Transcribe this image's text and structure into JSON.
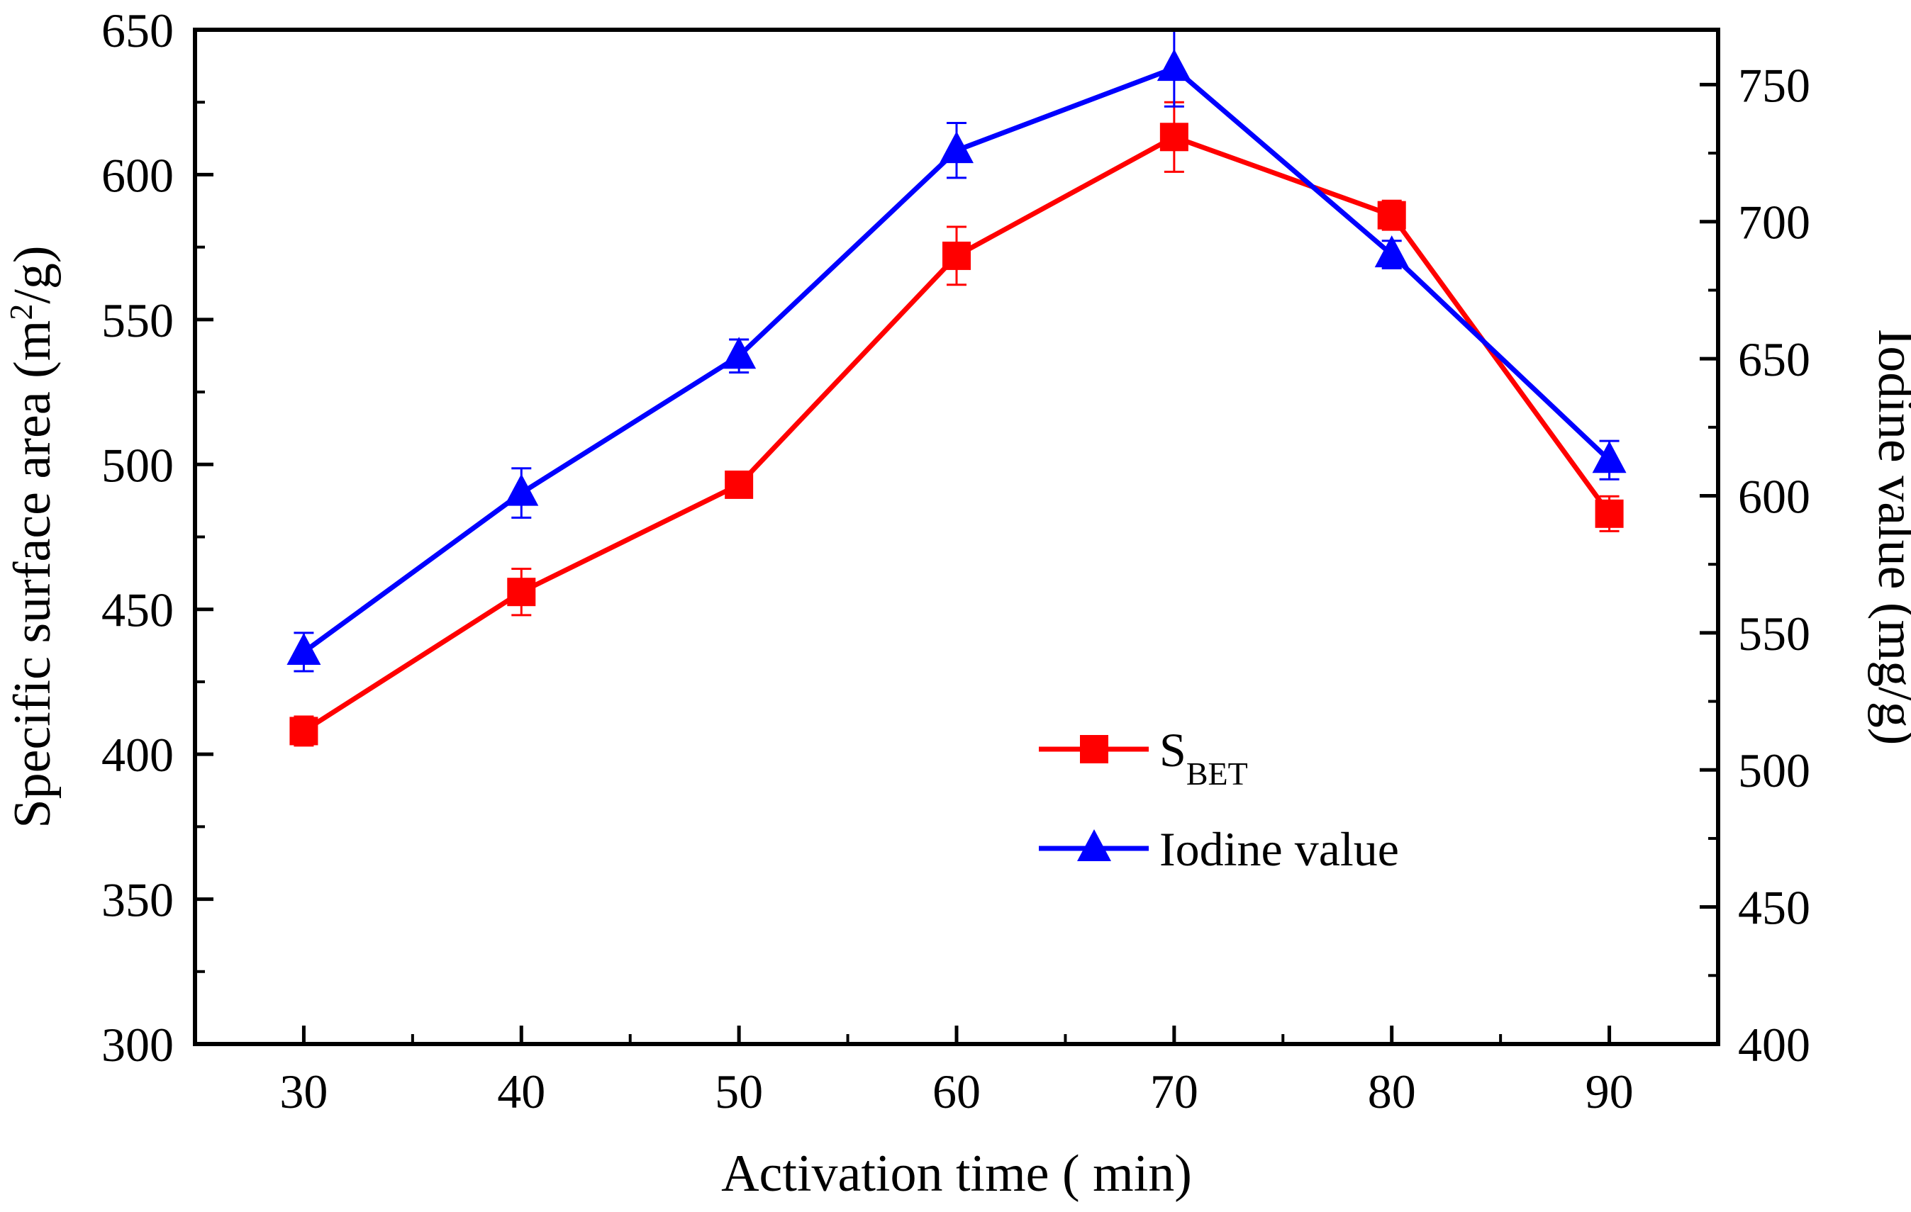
{
  "chart_data": {
    "type": "line",
    "x": [
      30,
      40,
      50,
      60,
      70,
      80,
      90
    ],
    "xlabel": "Activation time ( min)",
    "ylabel_left": {
      "main": "Specific surface area (m",
      "sup": "2",
      "tail": "/g)"
    },
    "ylabel_right": "Iodine value (mg/g)",
    "xlim": [
      25,
      95
    ],
    "xticks": [
      "30",
      "40",
      "50",
      "60",
      "70",
      "80",
      "90"
    ],
    "ylim_left": [
      300,
      650
    ],
    "yticks_left": [
      "300",
      "350",
      "400",
      "450",
      "500",
      "550",
      "600",
      "650"
    ],
    "ylim_right": [
      400,
      770
    ],
    "yticks_right": [
      "400",
      "450",
      "500",
      "550",
      "600",
      "650",
      "700",
      "750"
    ],
    "legend_position": "lower-right inside plot",
    "series": [
      {
        "name": "S",
        "name_sub": "BET",
        "axis": "left",
        "marker": "square",
        "color": "#ff0000",
        "values": [
          408,
          456,
          493,
          572,
          613,
          586,
          483
        ],
        "errors": [
          5,
          8,
          3,
          10,
          12,
          5,
          6
        ]
      },
      {
        "name": "Iodine value",
        "axis": "right",
        "marker": "triangle",
        "color": "#0000ff",
        "values": [
          543,
          601,
          651,
          726,
          756,
          688,
          613
        ],
        "errors": [
          7,
          9,
          6,
          10,
          14,
          5,
          7
        ]
      }
    ]
  }
}
